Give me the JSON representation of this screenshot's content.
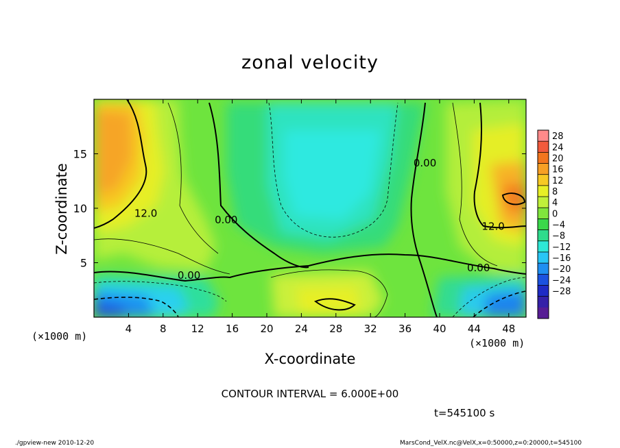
{
  "title": "zonal velocity",
  "chart_data": {
    "type": "heatmap",
    "title": "zonal velocity",
    "xlabel": "X-coordinate",
    "ylabel": "Z-coordinate",
    "x_unit_label": "(×1000 m)",
    "xlim": [
      0,
      50
    ],
    "ylim": [
      0,
      20
    ],
    "x_ticks": [
      4,
      8,
      12,
      16,
      20,
      24,
      28,
      32,
      36,
      40,
      44,
      48
    ],
    "y_ticks": [
      5,
      10,
      15
    ],
    "colorbar": {
      "ticks": [
        28,
        24,
        20,
        16,
        12,
        8,
        4,
        0,
        -4,
        -8,
        -12,
        -16,
        -20,
        -24,
        -28
      ],
      "colors": [
        "#ff8a8a",
        "#f25a3c",
        "#f3761e",
        "#f7a025",
        "#f7c924",
        "#e8ef26",
        "#c0f03a",
        "#80e63d",
        "#3ad84a",
        "#2edb8c",
        "#2ee8d6",
        "#29c6f5",
        "#1f8ff2",
        "#1b52e0",
        "#1f2bc5",
        "#3521a8",
        "#571d94"
      ]
    },
    "contour_labels": [
      {
        "text": "12.0",
        "x": 6.0,
        "z": 9.6
      },
      {
        "text": "0.00",
        "x": 11.0,
        "z": 3.9
      },
      {
        "text": "0.00",
        "x": 15.3,
        "z": 9.0
      },
      {
        "text": "0.00",
        "x": 38.3,
        "z": 14.2
      },
      {
        "text": "12.0",
        "x": 46.2,
        "z": 8.4
      },
      {
        "text": "0.00",
        "x": 44.5,
        "z": 4.6
      }
    ],
    "contour_interval": "CONTOUR INTERVAL = 6.000E+00"
  },
  "time_label": "t=545100 s",
  "footer_left": "./gpview-new  2010-12-20",
  "footer_right": "MarsCond_VelX.nc@VelX,x=0:50000,z=0:20000,t=545100"
}
